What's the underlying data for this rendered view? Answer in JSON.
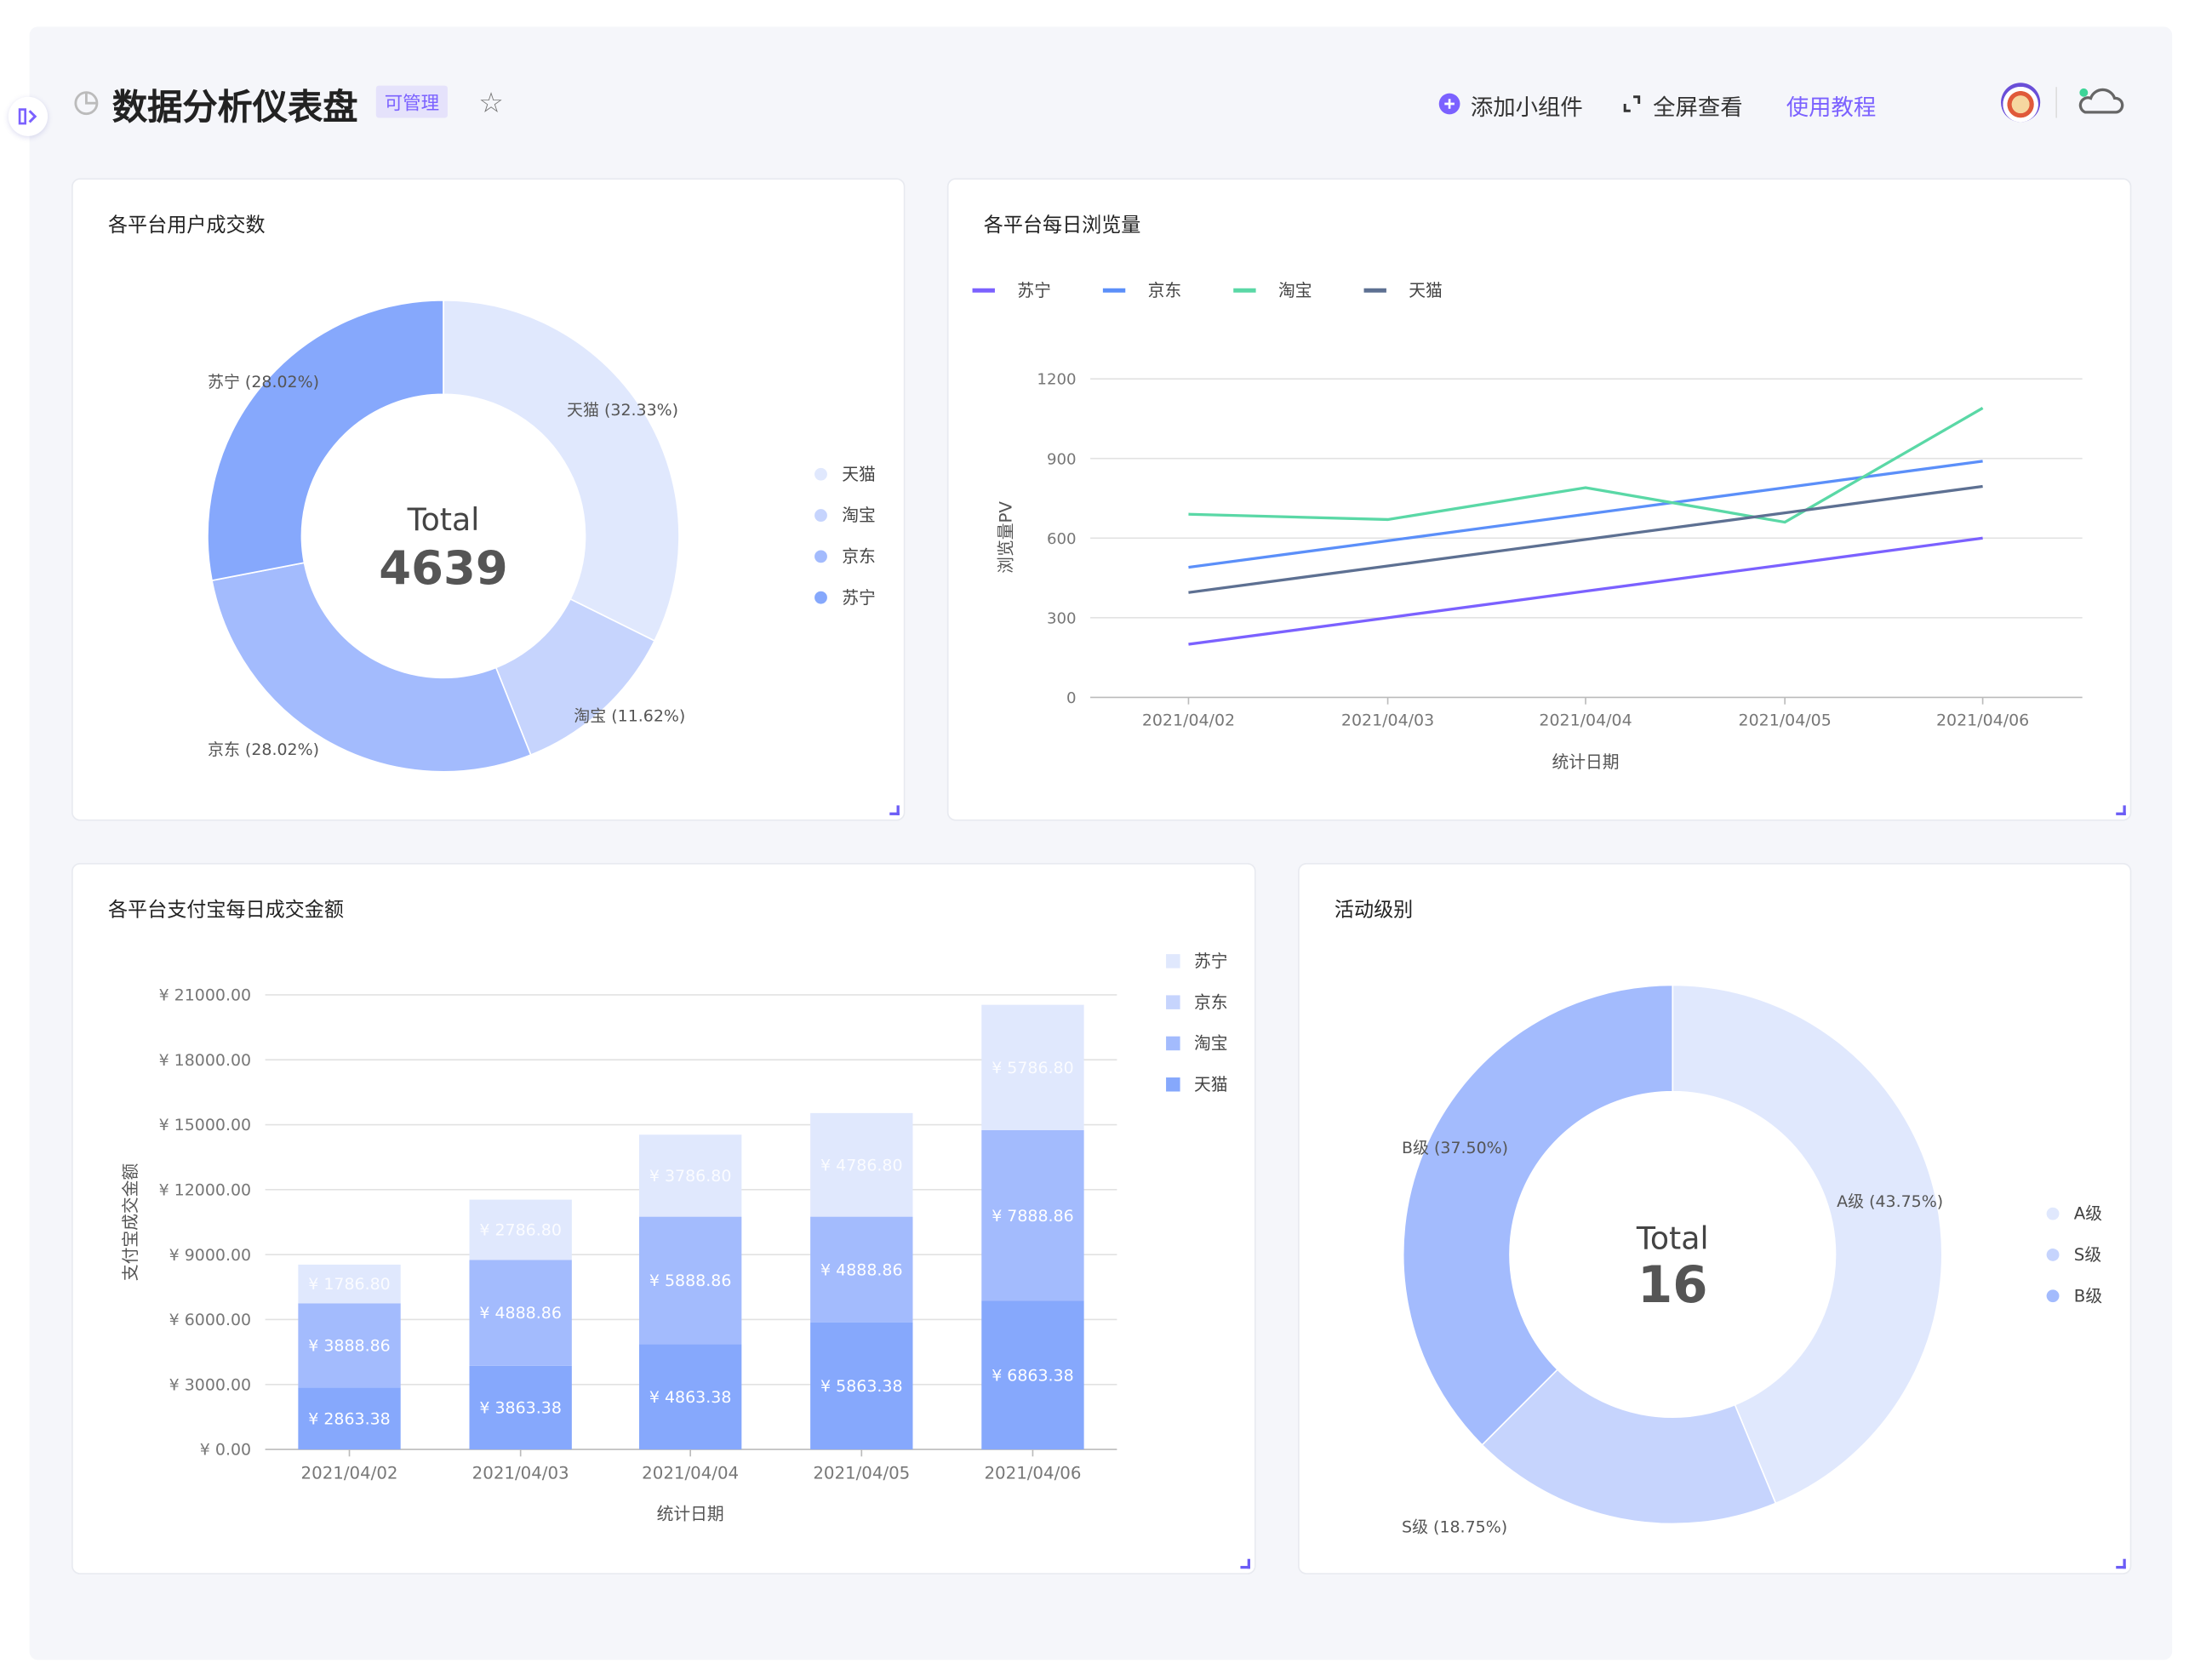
{
  "header": {
    "title": "数据分析仪表盘",
    "tag": "可管理",
    "add_widget": "添加小组件",
    "fullscreen": "全屏查看",
    "tutorial": "使用教程",
    "accent": "#7b61ff"
  },
  "cards": {
    "users": {
      "title": "各平台用户成交数"
    },
    "pv": {
      "title": "各平台每日浏览量"
    },
    "alipay": {
      "title": "各平台支付宝每日成交金额"
    },
    "level": {
      "title": "活动级别"
    }
  },
  "chart_data": [
    {
      "type": "pie",
      "donut": true,
      "center_label": "Total",
      "center_value": "4639",
      "categories": [
        "天猫",
        "淘宝",
        "京东",
        "苏宁"
      ],
      "values": [
        1500,
        539,
        1300,
        1300
      ],
      "labels": [
        "天猫 (32.33%)",
        "淘宝 (11.62%)",
        "京东 (28.02%)",
        "苏宁 (28.02%)"
      ],
      "colors": [
        "#e0e8fd",
        "#c6d4fd",
        "#a3bbfd",
        "#86a8fc"
      ],
      "legend": "right"
    },
    {
      "type": "line",
      "categories": [
        "2021/04/02",
        "2021/04/03",
        "2021/04/04",
        "2021/04/05",
        "2021/04/06"
      ],
      "series": [
        {
          "name": "苏宁",
          "values": [
            200,
            300,
            400,
            500,
            600
          ],
          "color": "#7b61ff"
        },
        {
          "name": "京东",
          "values": [
            490,
            590,
            690,
            790,
            890
          ],
          "color": "#5b8ff9"
        },
        {
          "name": "淘宝",
          "values": [
            690,
            670,
            790,
            660,
            1090
          ],
          "color": "#5ad8a6"
        },
        {
          "name": "天猫",
          "values": [
            395,
            495,
            595,
            695,
            795
          ],
          "color": "#5d7092"
        }
      ],
      "yticks": [
        "0",
        "300",
        "600",
        "900",
        "1200"
      ],
      "ylim": [
        0,
        1200
      ],
      "xlabel": "统计日期",
      "ylabel": "浏览量PV",
      "legend": "top-left",
      "grid": true
    },
    {
      "type": "bar",
      "stacked": true,
      "categories": [
        "2021/04/02",
        "2021/04/03",
        "2021/04/04",
        "2021/04/05",
        "2021/04/06"
      ],
      "series": [
        {
          "name": "天猫",
          "values": [
            2863.38,
            3863.38,
            4863.38,
            5863.38,
            6863.38
          ],
          "labels": [
            "¥ 2863.38",
            "¥ 3863.38",
            "¥ 4863.38",
            "¥ 5863.38",
            "¥ 6863.38"
          ],
          "color": "#86a8fc"
        },
        {
          "name": "淘宝",
          "values": [
            3888.86,
            4888.86,
            5888.86,
            4888.86,
            7888.86
          ],
          "labels": [
            "¥ 3888.86",
            "¥ 4888.86",
            "¥ 5888.86",
            "¥ 4888.86",
            "¥ 7888.86"
          ],
          "color": "#a3bbfd"
        },
        {
          "name": "苏宁",
          "values": [
            1786.8,
            2786.8,
            3786.8,
            4786.8,
            5786.8
          ],
          "labels": [
            "¥ 1786.80",
            "¥ 2786.80",
            "¥ 3786.80",
            "¥ 4786.80",
            "¥ 5786.80"
          ],
          "color": "#e0e8fd"
        }
      ],
      "legend_items": [
        {
          "name": "苏宁",
          "color": "#e0e8fd"
        },
        {
          "name": "京东",
          "color": "#c6d4fd"
        },
        {
          "name": "淘宝",
          "color": "#a3bbfd"
        },
        {
          "name": "天猫",
          "color": "#86a8fc"
        }
      ],
      "yticks": [
        "¥ 0.00",
        "¥ 3000.00",
        "¥ 6000.00",
        "¥ 9000.00",
        "¥ 12000.00",
        "¥ 15000.00",
        "¥ 18000.00",
        "¥ 21000.00"
      ],
      "ylim": [
        0,
        21000
      ],
      "xlabel": "统计日期",
      "ylabel": "支付宝成交金额",
      "legend": "right",
      "grid": true
    },
    {
      "type": "pie",
      "donut": true,
      "center_label": "Total",
      "center_value": "16",
      "categories": [
        "A级",
        "S级",
        "B级"
      ],
      "values": [
        7,
        3,
        6
      ],
      "labels": [
        "A级 (43.75%)",
        "S级 (18.75%)",
        "B级 (37.50%)"
      ],
      "colors": [
        "#e0e8fd",
        "#c6d4fd",
        "#a3bbfd"
      ],
      "legend": "right"
    }
  ]
}
